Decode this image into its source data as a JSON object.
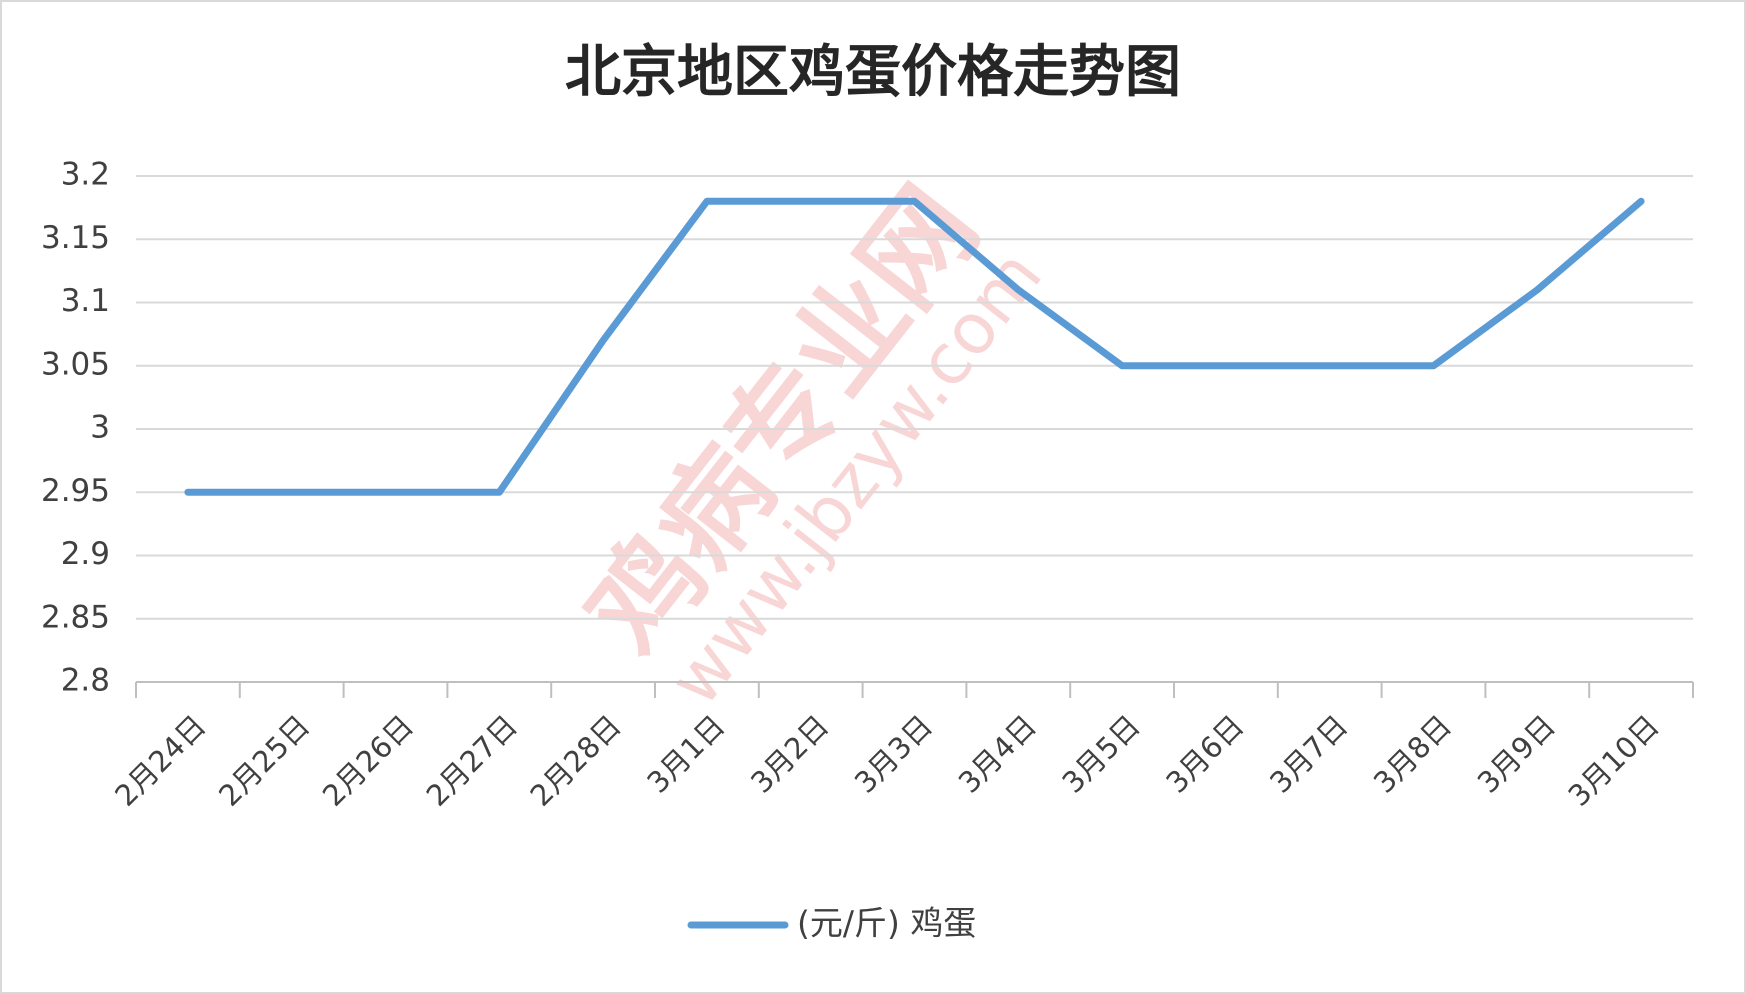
{
  "chart_data": {
    "type": "line",
    "title": "北京地区鸡蛋价格走势图",
    "categories": [
      "2月24日",
      "2月25日",
      "2月26日",
      "2月27日",
      "2月28日",
      "3月1日",
      "3月2日",
      "3月3日",
      "3月4日",
      "3月5日",
      "3月6日",
      "3月7日",
      "3月8日",
      "3月9日",
      "3月10日"
    ],
    "series": [
      {
        "name": "(元/斤) 鸡蛋",
        "color": "#5b9bd5",
        "values": [
          2.95,
          2.95,
          2.95,
          2.95,
          3.07,
          3.18,
          3.18,
          3.18,
          3.11,
          3.05,
          3.05,
          3.05,
          3.05,
          3.11,
          3.18
        ]
      }
    ],
    "ylim": [
      2.8,
      3.2
    ],
    "yticks": [
      2.8,
      2.85,
      2.9,
      2.95,
      3,
      3.05,
      3.1,
      3.15,
      3.2
    ],
    "grid": true,
    "legend": "bottom",
    "watermark": [
      "鸡病专业网",
      "www.jbzyw.com"
    ]
  }
}
